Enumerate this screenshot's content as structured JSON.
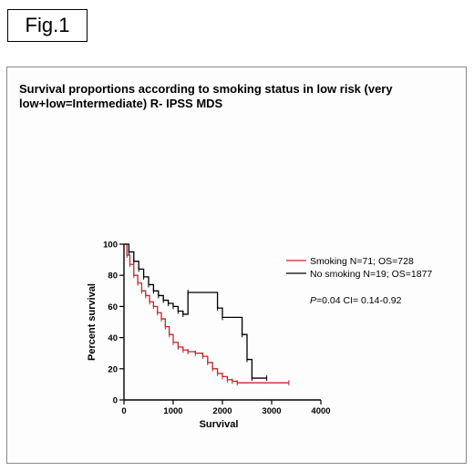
{
  "figure_label": "Fig.1",
  "chart_data": {
    "type": "line",
    "title": "Survival proportions according to smoking status in low risk (very low+low=Intermediate) R- IPSS MDS",
    "xlabel": "Survival",
    "ylabel": "Percent survival",
    "xlim": [
      0,
      4000
    ],
    "ylim": [
      0,
      100
    ],
    "xticks": [
      "0",
      "1000",
      "2000",
      "3000",
      "4000"
    ],
    "yticks": [
      "0",
      "20",
      "40",
      "60",
      "80",
      "100"
    ],
    "legend_position": "right",
    "series": [
      {
        "name": "Smoking N=71;  OS=728",
        "color": "#c0282c",
        "censor_marks": "ticks",
        "x": [
          0,
          60,
          120,
          200,
          280,
          360,
          440,
          520,
          600,
          680,
          760,
          840,
          920,
          1000,
          1100,
          1200,
          1300,
          1450,
          1600,
          1700,
          1800,
          1900,
          2000,
          2100,
          2200,
          2300,
          3350
        ],
        "y": [
          100,
          93,
          87,
          80,
          75,
          70,
          67,
          63,
          60,
          56,
          52,
          47,
          42,
          37,
          34,
          32,
          31,
          30,
          28,
          24,
          20,
          17,
          15,
          13,
          12,
          11,
          11
        ]
      },
      {
        "name": "No smoking N=19;  OS=1877",
        "color": "#000000",
        "censor_marks": "ticks",
        "x": [
          0,
          100,
          200,
          300,
          400,
          500,
          600,
          700,
          800,
          900,
          1000,
          1100,
          1200,
          1300,
          1900,
          2000,
          2400,
          2500,
          2600,
          2900
        ],
        "y": [
          100,
          95,
          89,
          84,
          79,
          74,
          70,
          67,
          64,
          62,
          60,
          57,
          55,
          69,
          59,
          53,
          42,
          26,
          14,
          14
        ]
      }
    ],
    "annotation_p_letter": "P",
    "annotation_p_rest": "=0.04   CI= 0.14-0.92"
  }
}
